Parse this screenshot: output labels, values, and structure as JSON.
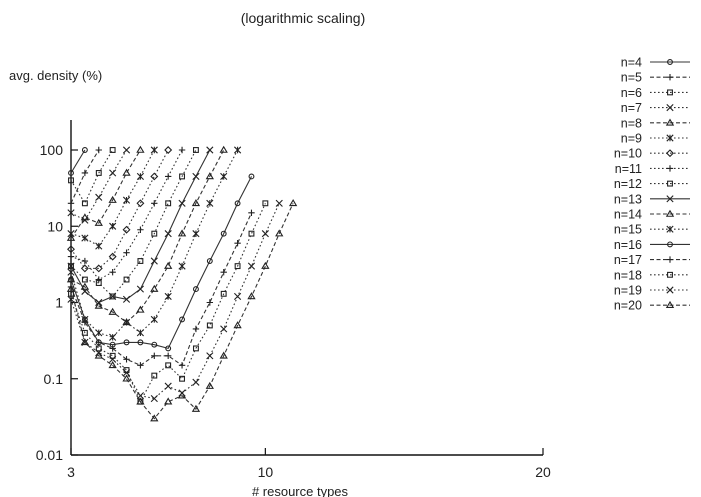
{
  "chart_data": {
    "type": "line",
    "title": "(logarithmic scaling)",
    "ylabel": "avg. density (%)",
    "xlabel": "# resource types",
    "x_scale": "linear",
    "y_scale": "log",
    "xlim": [
      3,
      20
    ],
    "ylim": [
      0.01,
      100
    ],
    "x_ticks": [
      "3",
      "10",
      "20"
    ],
    "y_ticks": [
      "0.01",
      "0.1",
      "1",
      "10",
      "100"
    ],
    "legend_position": "right",
    "series": [
      {
        "name": "n=4",
        "marker": "circle",
        "dash": "solid",
        "x": [
          3,
          3.5
        ],
        "y": [
          50,
          100
        ]
      },
      {
        "name": "n=5",
        "marker": "plus",
        "dash": "dashed",
        "x": [
          3,
          3.5,
          4
        ],
        "y": [
          20,
          50,
          100
        ]
      },
      {
        "name": "n=6",
        "marker": "square",
        "dash": "dotted",
        "x": [
          3,
          3.5,
          4,
          4.5
        ],
        "y": [
          40,
          20,
          50,
          100
        ]
      },
      {
        "name": "n=7",
        "marker": "x",
        "dash": "dotted",
        "x": [
          3,
          3.5,
          4,
          4.5,
          5
        ],
        "y": [
          15,
          12,
          24,
          50,
          100
        ]
      },
      {
        "name": "n=8",
        "marker": "triangle",
        "dash": "dashed",
        "x": [
          3,
          3.5,
          4,
          4.5,
          5,
          5.5
        ],
        "y": [
          7,
          13,
          11,
          22,
          50,
          100
        ]
      },
      {
        "name": "n=9",
        "marker": "asterisk",
        "dash": "dotted",
        "x": [
          3,
          3.5,
          4,
          4.5,
          5,
          5.5,
          6
        ],
        "y": [
          8,
          7,
          5.5,
          10,
          22,
          45,
          100
        ]
      },
      {
        "name": "n=10",
        "marker": "diamond",
        "dash": "dotted",
        "x": [
          3,
          3.5,
          4,
          4.5,
          5,
          5.5,
          6,
          6.5
        ],
        "y": [
          5,
          2.8,
          2.8,
          4,
          9,
          20,
          45,
          100
        ]
      },
      {
        "name": "n=11",
        "marker": "plus",
        "dash": "dotted",
        "x": [
          3,
          3.5,
          4,
          4.5,
          5,
          5.5,
          6,
          6.5,
          7
        ],
        "y": [
          4,
          3.5,
          2,
          2.5,
          4.5,
          9,
          20,
          45,
          100
        ]
      },
      {
        "name": "n=12",
        "marker": "square",
        "dash": "dotted",
        "x": [
          3,
          3.5,
          4,
          4.5,
          5,
          5.5,
          6,
          6.5,
          7,
          7.5
        ],
        "y": [
          3,
          2,
          1.8,
          1.2,
          2,
          3.5,
          8,
          20,
          45,
          100
        ]
      },
      {
        "name": "n=13",
        "marker": "x",
        "dash": "solid",
        "x": [
          3,
          3.5,
          4,
          4.5,
          5,
          5.5,
          6,
          6.5,
          7,
          7.5,
          8
        ],
        "y": [
          3,
          1.4,
          1,
          1.2,
          1.1,
          1.5,
          3.5,
          8,
          20,
          45,
          100
        ]
      },
      {
        "name": "n=14",
        "marker": "triangle",
        "dash": "dashed",
        "x": [
          3,
          3.5,
          4,
          4.5,
          5,
          5.5,
          6,
          6.5,
          7,
          7.5,
          8,
          8.5
        ],
        "y": [
          2,
          1.6,
          0.9,
          0.75,
          0.55,
          0.8,
          1.5,
          3,
          8,
          20,
          45,
          100
        ]
      },
      {
        "name": "n=15",
        "marker": "asterisk",
        "dash": "dotted",
        "x": [
          3,
          3.5,
          4,
          4.5,
          5,
          5.5,
          6,
          6.5,
          7,
          7.5,
          8,
          8.5,
          9
        ],
        "y": [
          2.5,
          0.6,
          0.4,
          0.35,
          0.55,
          0.4,
          0.6,
          1.2,
          3,
          8,
          20,
          45,
          100
        ]
      },
      {
        "name": "n=16",
        "marker": "circle",
        "dash": "solid",
        "x": [
          3,
          3.5,
          4,
          4.5,
          5,
          5.5,
          6,
          6.5,
          7,
          7.5,
          8,
          8.5,
          9,
          9.5
        ],
        "y": [
          2,
          0.6,
          0.3,
          0.28,
          0.3,
          0.3,
          0.28,
          0.25,
          0.6,
          1.5,
          3.5,
          8,
          20,
          45
        ]
      },
      {
        "name": "n=17",
        "marker": "plus",
        "dash": "dashed",
        "x": [
          3,
          3.5,
          4,
          4.5,
          5,
          5.5,
          6,
          6.5,
          7,
          7.5,
          8,
          8.5,
          9,
          9.5
        ],
        "y": [
          1.6,
          0.55,
          0.3,
          0.25,
          0.18,
          0.15,
          0.2,
          0.2,
          0.15,
          0.45,
          1,
          2.5,
          6,
          15
        ]
      },
      {
        "name": "n=18",
        "marker": "square",
        "dash": "dotted",
        "x": [
          3,
          3.5,
          4,
          4.5,
          5,
          5.5,
          6,
          6.5,
          7,
          7.5,
          8,
          8.5,
          9,
          9.5,
          10
        ],
        "y": [
          1.3,
          0.4,
          0.25,
          0.2,
          0.13,
          0.05,
          0.11,
          0.15,
          0.1,
          0.25,
          0.5,
          1.3,
          3,
          8,
          20
        ]
      },
      {
        "name": "n=19",
        "marker": "x",
        "dash": "dotted",
        "x": [
          3,
          3.5,
          4,
          4.5,
          5,
          5.5,
          6,
          6.5,
          7,
          7.5,
          8,
          8.5,
          9,
          9.5,
          10,
          10.5
        ],
        "y": [
          1.1,
          0.3,
          0.22,
          0.18,
          0.12,
          0.06,
          0.055,
          0.08,
          0.065,
          0.09,
          0.2,
          0.45,
          1.2,
          3,
          8,
          20
        ]
      },
      {
        "name": "n=20",
        "marker": "triangle",
        "dash": "dashed",
        "x": [
          3,
          3.5,
          4,
          4.5,
          5,
          5.5,
          6,
          6.5,
          7,
          7.5,
          8,
          8.5,
          9,
          9.5,
          10,
          10.5,
          11
        ],
        "y": [
          1.5,
          0.3,
          0.2,
          0.15,
          0.1,
          0.05,
          0.03,
          0.05,
          0.06,
          0.04,
          0.08,
          0.2,
          0.5,
          1.2,
          3,
          8,
          20
        ]
      }
    ]
  }
}
